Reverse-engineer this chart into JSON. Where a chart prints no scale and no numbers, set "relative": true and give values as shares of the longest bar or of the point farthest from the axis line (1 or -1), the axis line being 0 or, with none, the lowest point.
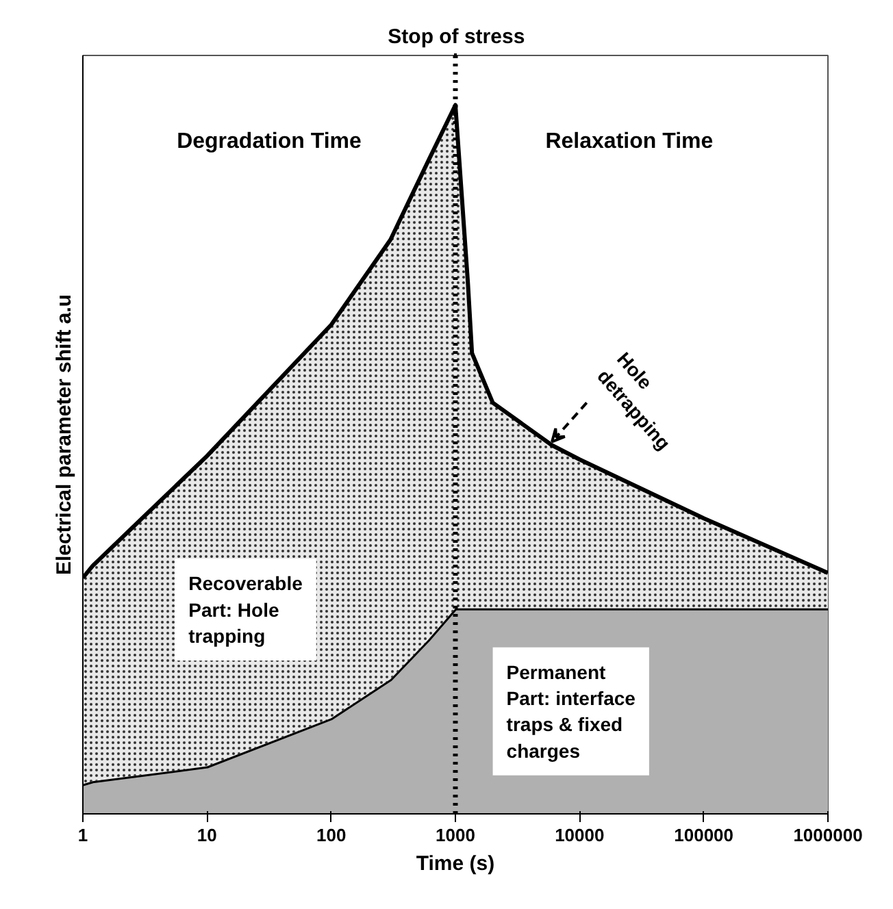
{
  "chart_data": {
    "type": "area",
    "relative": true,
    "stacked": true,
    "log": "x",
    "xlabel": "Time (s)",
    "ylabel": "Electrical parameter shift a.u",
    "x": [
      1,
      1.2,
      10,
      100,
      300,
      600,
      1000,
      1260,
      1360,
      2000,
      6000,
      10000,
      100000,
      1000000
    ],
    "xlim": [
      1,
      1000000
    ],
    "xticks": [
      1,
      10,
      100,
      1000,
      10000,
      100000,
      1000000
    ],
    "series": [
      {
        "color": "#b0b0b0",
        "values": [
          0.042,
          0.046,
          0.067,
          0.135,
          0.19,
          0.245,
          0.29,
          0.29,
          0.29,
          0.29,
          0.29,
          0.29,
          0.29,
          0.29
        ]
      },
      {
        "color": "#e8e8e8",
        "values": [
          0.291,
          0.304,
          0.438,
          0.555,
          0.62,
          0.675,
          0.71,
          0.46,
          0.36,
          0.29,
          0.23,
          0.21,
          0.127,
          0.05
        ]
      }
    ],
    "ref_lines": [
      {
        "axis": "x",
        "value": 1000,
        "label": "Stop of stress",
        "line_style": "dotted"
      }
    ],
    "annotations": [
      "Degradation Time",
      "Relaxation Time",
      "Recoverable\nPart: Hole\ntrapping",
      "Permanent\nPart: interface\ntraps & fixed\ncharges",
      {
        "text": "Hole\ndetrapping",
        "x": 6000,
        "y": 0.52
      }
    ],
    "grid": false
  }
}
